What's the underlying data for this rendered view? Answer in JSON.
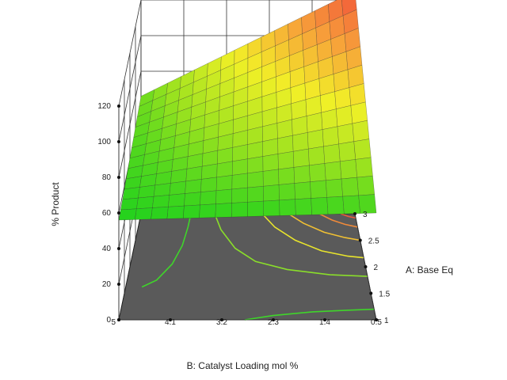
{
  "chart_data": {
    "type": "surface3d",
    "zlabel": "% Product",
    "xlabel": "B: Catalyst Loading mol %",
    "ylabel": "A: Base Eq",
    "z_ticks": [
      "0",
      "20",
      "40",
      "60",
      "80",
      "100",
      "120"
    ],
    "b_ticks": [
      "5",
      "4.1",
      "3.2",
      "2.3",
      "1.4",
      "0.5"
    ],
    "a_ticks": [
      "1",
      "1.5",
      "2",
      "2.5",
      "3"
    ],
    "b_range": [
      0.5,
      5
    ],
    "a_range": [
      1,
      3
    ],
    "z_range": [
      0,
      120
    ],
    "surface": {
      "description_z": "% Product",
      "corners": [
        {
          "B": 5,
          "A": 3,
          "z": 66
        },
        {
          "B": 0.5,
          "A": 3,
          "z": 125
        },
        {
          "B": 5,
          "A": 1,
          "z": 56
        },
        {
          "B": 0.5,
          "A": 1,
          "z": 60
        }
      ]
    },
    "colormap": [
      "#22d11d",
      "#9be21f",
      "#f2f027",
      "#f7a13a",
      "#f2553a"
    ],
    "floor_color": "#5a5a5a",
    "grid": true
  }
}
